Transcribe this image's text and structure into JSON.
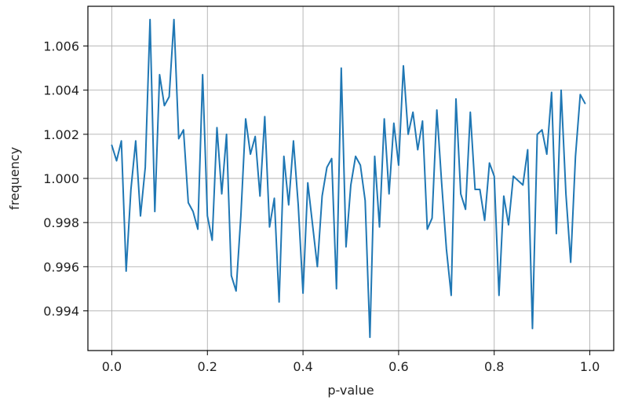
{
  "chart_data": {
    "type": "line",
    "title": "",
    "xlabel": "p-value",
    "ylabel": "frequency",
    "xlim": [
      -0.05,
      1.05
    ],
    "ylim": [
      0.9922,
      1.0078
    ],
    "grid": true,
    "xticks": [
      0.0,
      0.2,
      0.4,
      0.6,
      0.8,
      1.0
    ],
    "xtick_labels": [
      "0.0",
      "0.2",
      "0.4",
      "0.6",
      "0.8",
      "1.0"
    ],
    "yticks": [
      0.994,
      0.996,
      0.998,
      1.0,
      1.002,
      1.004,
      1.006
    ],
    "ytick_labels": [
      "0.994",
      "0.996",
      "0.998",
      "1.000",
      "1.002",
      "1.004",
      "1.006"
    ],
    "series": [
      {
        "color": "#1f77b4",
        "x": [
          0.0,
          0.01,
          0.02,
          0.03,
          0.04,
          0.05,
          0.06,
          0.07,
          0.08,
          0.09,
          0.1,
          0.11,
          0.12,
          0.13,
          0.14,
          0.15,
          0.16,
          0.17,
          0.18,
          0.19,
          0.2,
          0.21,
          0.22,
          0.23,
          0.24,
          0.25,
          0.26,
          0.27,
          0.28,
          0.29,
          0.3,
          0.31,
          0.32,
          0.33,
          0.34,
          0.35,
          0.36,
          0.37,
          0.38,
          0.39,
          0.4,
          0.41,
          0.42,
          0.43,
          0.44,
          0.45,
          0.46,
          0.47,
          0.48,
          0.49,
          0.5,
          0.51,
          0.52,
          0.53,
          0.54,
          0.55,
          0.56,
          0.57,
          0.58,
          0.59,
          0.6,
          0.61,
          0.62,
          0.63,
          0.64,
          0.65,
          0.66,
          0.67,
          0.68,
          0.69,
          0.7,
          0.71,
          0.72,
          0.73,
          0.74,
          0.75,
          0.76,
          0.77,
          0.78,
          0.79,
          0.8,
          0.81,
          0.82,
          0.83,
          0.84,
          0.85,
          0.86,
          0.87,
          0.88,
          0.89,
          0.9,
          0.91,
          0.92,
          0.93,
          0.94,
          0.95,
          0.96,
          0.97,
          0.98,
          0.99
        ],
        "y": [
          1.0015,
          1.0008,
          1.0017,
          0.9958,
          0.9995,
          1.0017,
          0.9983,
          1.0005,
          1.0072,
          0.9985,
          1.0047,
          1.0033,
          1.0037,
          1.0072,
          1.0018,
          1.0022,
          0.9989,
          0.9985,
          0.9977,
          1.0047,
          0.9983,
          0.9972,
          1.0023,
          0.9993,
          1.002,
          0.9956,
          0.9949,
          0.9983,
          1.0027,
          1.0011,
          1.0019,
          0.9992,
          1.0028,
          0.9978,
          0.9991,
          0.9944,
          1.001,
          0.9988,
          1.0017,
          0.9988,
          0.9948,
          0.9998,
          0.9979,
          0.996,
          0.9992,
          1.0005,
          1.0009,
          0.995,
          1.005,
          0.9969,
          0.9997,
          1.001,
          1.0006,
          0.999,
          0.9928,
          1.001,
          0.9978,
          1.0027,
          0.9993,
          1.0025,
          1.0006,
          1.0051,
          1.002,
          1.003,
          1.0013,
          1.0026,
          0.9977,
          0.9982,
          1.0031,
          0.9998,
          0.9968,
          0.9947,
          1.0036,
          0.9993,
          0.9986,
          1.003,
          0.9995,
          0.9995,
          0.9981,
          1.0007,
          1.0001,
          0.9947,
          0.9992,
          0.9979,
          1.0001,
          0.9999,
          0.9997,
          1.0013,
          0.9932,
          1.002,
          1.0022,
          1.0011,
          1.0039,
          0.9975,
          1.004,
          0.9993,
          0.9962,
          1.001,
          1.0038,
          1.0034
        ]
      }
    ]
  }
}
